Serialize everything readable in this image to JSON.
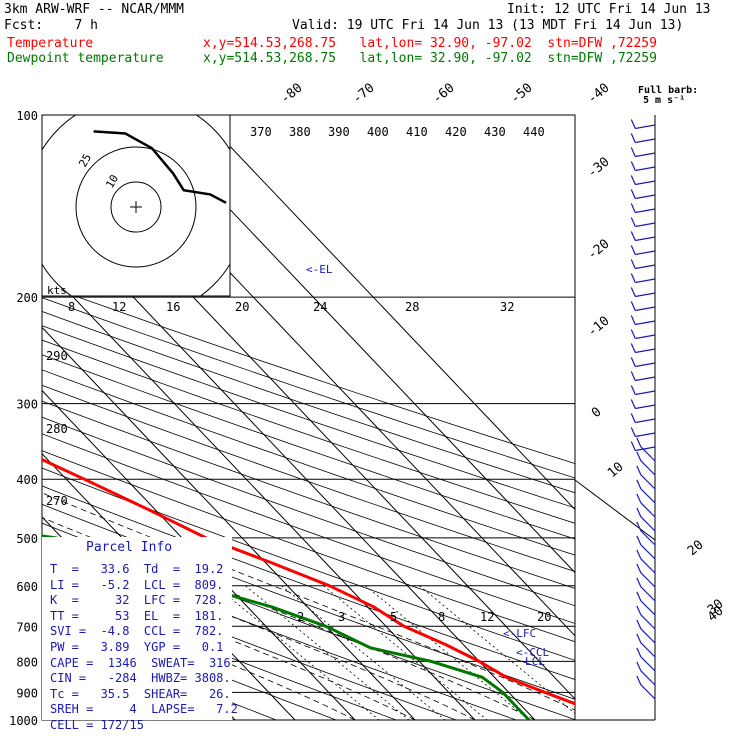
{
  "header": {
    "model": "3km ARW-WRF -- NCAR/MMM",
    "init": "Init: 12 UTC Fri 14 Jun 13",
    "fcst": "Fcst:    7 h",
    "valid": "Valid: 19 UTC Fri 14 Jun 13 (13 MDT Fri 14 Jun 13)",
    "temp_label": "Temperature",
    "temp_info": "x,y=514.53,268.75   lat,lon= 32.90, -97.02  stn=DFW ,72259",
    "dew_label": "Dewpoint temperature",
    "dew_info": "x,y=514.53,268.75   lat,lon= 32.90, -97.02  stn=DFW ,72259"
  },
  "colors": {
    "temperature": "#ff0000",
    "dewpoint": "#007800",
    "text": "#1a1ab4"
  },
  "chart_data": {
    "type": "line",
    "chart_kind": "skew-T log-P sounding",
    "y_scale": "log",
    "pressure_levels": [
      100,
      200,
      300,
      400,
      500,
      600,
      700,
      800,
      900,
      1000
    ],
    "temp_ticks_top": [
      "-80",
      "-70",
      "-60",
      "-50",
      "-40"
    ],
    "temp_ticks_right": [
      "-30",
      "-20",
      "-10",
      "0",
      "10",
      "20",
      "30",
      "40"
    ],
    "theta_labels": [
      "370",
      "380",
      "390",
      "400",
      "410",
      "420",
      "430",
      "440"
    ],
    "mixing_ratio_labels": [
      "2",
      "3",
      "5",
      "8",
      "12",
      "20"
    ],
    "hodograph_speed_labels": [
      "8",
      "12",
      "16",
      "20",
      "24",
      "28",
      "32"
    ],
    "hodograph_units": "kts",
    "hodograph_rings": [
      "10",
      "25"
    ],
    "left_theta_labels": [
      "290",
      "280",
      "270"
    ],
    "barb_header": "Full barb:\n5 m s⁻¹",
    "annotations": [
      {
        "text": "<-EL"
      },
      {
        "text": "<-LFC"
      },
      {
        "text": "<-CCL"
      },
      {
        "text": "LCL"
      }
    ],
    "series": [
      {
        "name": "Temperature",
        "points": [
          [
            100,
            -71
          ],
          [
            150,
            -62
          ],
          [
            200,
            -53
          ],
          [
            250,
            -40
          ],
          [
            300,
            -32
          ],
          [
            350,
            -24
          ],
          [
            400,
            -17
          ],
          [
            450,
            -11
          ],
          [
            500,
            -6
          ],
          [
            550,
            1
          ],
          [
            600,
            7
          ],
          [
            650,
            11
          ],
          [
            700,
            13
          ],
          [
            750,
            17
          ],
          [
            800,
            20
          ],
          [
            850,
            22
          ],
          [
            900,
            26
          ],
          [
            950,
            30
          ],
          [
            1000,
            34
          ]
        ]
      },
      {
        "name": "Dewpoint temperature",
        "points": [
          [
            100,
            -72
          ],
          [
            130,
            -80
          ],
          [
            150,
            -82
          ],
          [
            200,
            -62
          ],
          [
            250,
            -48
          ],
          [
            300,
            -36
          ],
          [
            350,
            -28
          ],
          [
            380,
            -26
          ],
          [
            400,
            -35
          ],
          [
            470,
            -49
          ],
          [
            500,
            -31
          ],
          [
            550,
            -17
          ],
          [
            590,
            -17
          ],
          [
            650,
            -6
          ],
          [
            700,
            0
          ],
          [
            760,
            4
          ],
          [
            800,
            12
          ],
          [
            850,
            18
          ],
          [
            900,
            19
          ],
          [
            1000,
            19
          ]
        ]
      }
    ],
    "hodograph": [
      [
        -8,
        18
      ],
      [
        -2,
        17.5
      ],
      [
        3,
        14
      ],
      [
        7,
        8
      ],
      [
        9,
        4
      ],
      [
        14,
        3
      ],
      [
        17,
        1
      ]
    ]
  },
  "parcel": {
    "title": "Parcel Info",
    "rows": [
      "T  =   33.6  Td  =  19.2",
      "LI =   -5.2  LCL =  809.",
      "K  =     32  LFC =  728.",
      "TT =     53  EL  =  181.",
      "SVI =  -4.8  CCL =  782.",
      "PW =   3.89  YGP =   0.1",
      "CAPE =  1346  SWEAT=  316",
      "CIN =   -284  HWBZ= 3808.",
      "Tc =   35.5  SHEAR=   26.",
      "SREH =     4  LAPSE=   7.2",
      "CELL = 172/15"
    ]
  }
}
